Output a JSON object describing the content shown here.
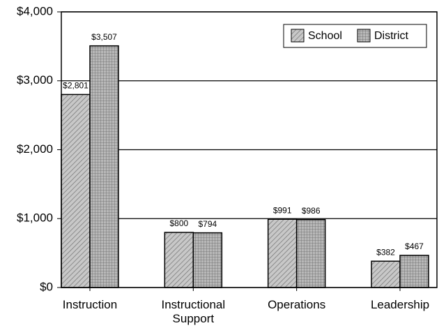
{
  "chart_data": {
    "type": "bar",
    "categories": [
      "Instruction",
      "Instructional Support",
      "Operations",
      "Leadership"
    ],
    "series": [
      {
        "name": "School",
        "color": "#c8c8c8",
        "values": [
          2801,
          800,
          991,
          382
        ],
        "value_labels": [
          "$2,801",
          "$800",
          "$991",
          "$382"
        ]
      },
      {
        "name": "District",
        "color": "#b8b8b8",
        "values": [
          3507,
          794,
          986,
          467
        ],
        "value_labels": [
          "$3,507",
          "$794",
          "$986",
          "$467"
        ]
      }
    ],
    "ylim": [
      0,
      4000
    ],
    "yticks": [
      {
        "value": 0,
        "label": "$0"
      },
      {
        "value": 1000,
        "label": "$1,000"
      },
      {
        "value": 2000,
        "label": "$2,000"
      },
      {
        "value": 3000,
        "label": "$3,000"
      },
      {
        "value": 4000,
        "label": "$4,000"
      }
    ],
    "grid": true,
    "legend": "top-right"
  }
}
